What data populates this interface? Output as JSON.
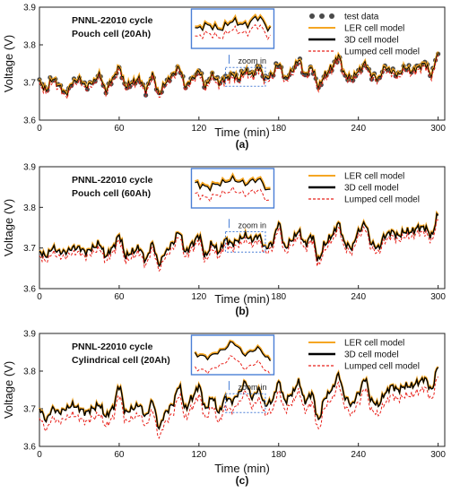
{
  "figure": {
    "type": "multi-panel line chart"
  },
  "colors": {
    "test_data": "#4a4a4a",
    "LER": "#f5a623",
    "3D": "#000000",
    "Lumped": "#e8201a",
    "zoom_box": "#4a7fd6"
  },
  "chart_data": [
    {
      "type": "line",
      "panel_label": "(a)",
      "annotation_lines": [
        "PNNL-22010 cycle",
        "Pouch cell  (20Ah)"
      ],
      "xlabel": "Time (min)",
      "ylabel": "Voltage (V)",
      "xlim": [
        0,
        305
      ],
      "ylim": [
        3.6,
        3.9
      ],
      "xticks": [
        0,
        60,
        120,
        180,
        240,
        300
      ],
      "yticks": [
        3.6,
        3.7,
        3.8,
        3.9
      ],
      "zoom_label": "zoom in",
      "zoom_window": [
        140,
        170
      ],
      "legend_position": "top-right",
      "legend": [
        "test data",
        "LER cell model",
        "3D cell model",
        "Lumped cell model"
      ],
      "series": [
        {
          "name": "test data",
          "style": "markers"
        },
        {
          "name": "LER cell model",
          "style": "line"
        },
        {
          "name": "3D cell model",
          "style": "line"
        },
        {
          "name": "Lumped cell model",
          "style": "dashed"
        }
      ],
      "x": [
        0,
        5,
        10,
        15,
        20,
        25,
        30,
        35,
        40,
        45,
        50,
        55,
        60,
        65,
        70,
        75,
        80,
        85,
        90,
        95,
        100,
        105,
        110,
        115,
        120,
        125,
        130,
        135,
        140,
        145,
        150,
        155,
        160,
        165,
        170,
        175,
        180,
        185,
        190,
        195,
        200,
        205,
        210,
        215,
        220,
        225,
        230,
        235,
        240,
        245,
        250,
        255,
        260,
        265,
        270,
        275,
        280,
        285,
        290,
        295,
        300
      ],
      "y": [
        3.7,
        3.68,
        3.71,
        3.69,
        3.67,
        3.7,
        3.71,
        3.69,
        3.7,
        3.72,
        3.68,
        3.71,
        3.74,
        3.69,
        3.7,
        3.71,
        3.68,
        3.72,
        3.67,
        3.7,
        3.72,
        3.74,
        3.69,
        3.71,
        3.73,
        3.69,
        3.72,
        3.7,
        3.71,
        3.72,
        3.71,
        3.73,
        3.72,
        3.74,
        3.71,
        3.72,
        3.75,
        3.71,
        3.73,
        3.76,
        3.72,
        3.74,
        3.69,
        3.72,
        3.74,
        3.77,
        3.72,
        3.71,
        3.73,
        3.75,
        3.72,
        3.71,
        3.74,
        3.73,
        3.72,
        3.74,
        3.73,
        3.74,
        3.75,
        3.72,
        3.78
      ],
      "lumped_offset": -0.008
    },
    {
      "type": "line",
      "panel_label": "(b)",
      "annotation_lines": [
        "PNNL-22010 cycle",
        "Pouch cell  (60Ah)"
      ],
      "xlabel": "Time (min)",
      "ylabel": "Voltage (V)",
      "xlim": [
        0,
        305
      ],
      "ylim": [
        3.6,
        3.9
      ],
      "xticks": [
        0,
        60,
        120,
        180,
        240,
        300
      ],
      "yticks": [
        3.6,
        3.7,
        3.8,
        3.9
      ],
      "zoom_label": "zoom in",
      "zoom_window": [
        140,
        170
      ],
      "legend_position": "top-right",
      "legend": [
        "LER cell model",
        "3D cell model",
        "Lumped cell model"
      ],
      "series": [
        {
          "name": "LER cell model",
          "style": "line"
        },
        {
          "name": "3D cell model",
          "style": "line"
        },
        {
          "name": "Lumped cell model",
          "style": "dashed"
        }
      ],
      "x": [
        0,
        5,
        10,
        15,
        20,
        25,
        30,
        35,
        40,
        45,
        50,
        55,
        60,
        65,
        70,
        75,
        80,
        85,
        90,
        95,
        100,
        105,
        110,
        115,
        120,
        125,
        130,
        135,
        140,
        145,
        150,
        155,
        160,
        165,
        170,
        175,
        180,
        185,
        190,
        195,
        200,
        205,
        210,
        215,
        220,
        225,
        230,
        235,
        240,
        245,
        250,
        255,
        260,
        265,
        270,
        275,
        280,
        285,
        290,
        295,
        300
      ],
      "y": [
        3.69,
        3.68,
        3.7,
        3.69,
        3.69,
        3.7,
        3.7,
        3.69,
        3.7,
        3.71,
        3.68,
        3.7,
        3.73,
        3.68,
        3.69,
        3.7,
        3.67,
        3.71,
        3.66,
        3.69,
        3.71,
        3.74,
        3.69,
        3.71,
        3.73,
        3.68,
        3.71,
        3.69,
        3.72,
        3.71,
        3.72,
        3.73,
        3.72,
        3.73,
        3.7,
        3.71,
        3.76,
        3.7,
        3.72,
        3.74,
        3.71,
        3.73,
        3.67,
        3.71,
        3.73,
        3.76,
        3.71,
        3.7,
        3.74,
        3.76,
        3.71,
        3.7,
        3.73,
        3.74,
        3.73,
        3.74,
        3.74,
        3.75,
        3.75,
        3.73,
        3.78
      ],
      "lumped_offset": -0.012
    },
    {
      "type": "line",
      "panel_label": "(c)",
      "annotation_lines": [
        "PNNL-22010 cycle",
        "Cylindrical cell  (20Ah)"
      ],
      "xlabel": "Time (min)",
      "ylabel": "Voltage (V)",
      "xlim": [
        0,
        305
      ],
      "ylim": [
        3.6,
        3.9
      ],
      "xticks": [
        0,
        60,
        120,
        180,
        240,
        300
      ],
      "yticks": [
        3.6,
        3.7,
        3.8,
        3.9
      ],
      "zoom_label": "zoom-in",
      "zoom_window": [
        140,
        170
      ],
      "legend_position": "top-right",
      "legend": [
        "LER cell model",
        "3D cell model",
        "Lumped cell model"
      ],
      "series": [
        {
          "name": "LER cell model",
          "style": "line"
        },
        {
          "name": "3D cell model",
          "style": "line"
        },
        {
          "name": "Lumped cell model",
          "style": "dashed"
        }
      ],
      "x": [
        0,
        5,
        10,
        15,
        20,
        25,
        30,
        35,
        40,
        45,
        50,
        55,
        60,
        65,
        70,
        75,
        80,
        85,
        90,
        95,
        100,
        105,
        110,
        115,
        120,
        125,
        130,
        135,
        140,
        145,
        150,
        155,
        160,
        165,
        170,
        175,
        180,
        185,
        190,
        195,
        200,
        205,
        210,
        215,
        220,
        225,
        230,
        235,
        240,
        245,
        250,
        255,
        260,
        265,
        270,
        275,
        280,
        285,
        290,
        295,
        300
      ],
      "y": [
        3.7,
        3.67,
        3.7,
        3.69,
        3.7,
        3.71,
        3.7,
        3.69,
        3.7,
        3.71,
        3.68,
        3.7,
        3.76,
        3.69,
        3.7,
        3.71,
        3.68,
        3.72,
        3.65,
        3.69,
        3.71,
        3.76,
        3.7,
        3.73,
        3.76,
        3.7,
        3.73,
        3.69,
        3.73,
        3.72,
        3.74,
        3.77,
        3.73,
        3.75,
        3.71,
        3.72,
        3.77,
        3.72,
        3.74,
        3.77,
        3.72,
        3.74,
        3.67,
        3.73,
        3.75,
        3.79,
        3.73,
        3.71,
        3.74,
        3.78,
        3.72,
        3.71,
        3.74,
        3.76,
        3.75,
        3.76,
        3.76,
        3.77,
        3.78,
        3.75,
        3.81
      ],
      "lumped_offset": -0.025
    }
  ]
}
